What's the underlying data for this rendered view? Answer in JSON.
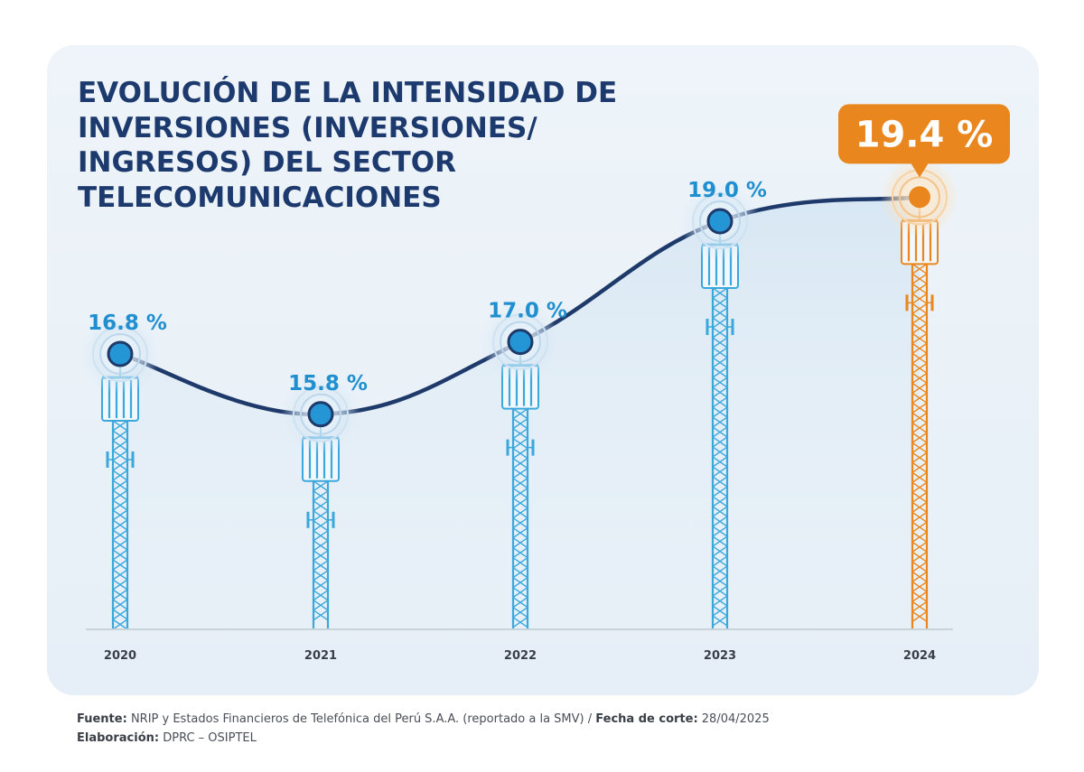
{
  "title": "EVOLUCIÓN DE LA INTENSIDAD DE INVERSIONES (INVERSIONES/ INGRESOS) DEL SECTOR TELECOMUNICACIONES",
  "footer": {
    "source_label": "Fuente:",
    "source_text": "NRIP y Estados Financieros de Telefónica del Perú S.A.A. (reportado a la SMV) /",
    "cutoff_label": "Fecha de corte:",
    "cutoff_text": "28/04/2025",
    "elab_label": "Elaboración:",
    "elab_text": "DPRC – OSIPTEL"
  },
  "colors": {
    "title": "#1d3a6e",
    "line": "#1e3a6b",
    "tower": "#3aa7dd",
    "point": "#2596d5",
    "label": "#1f8fd0",
    "highlight": "#e9861d",
    "year": "#3a3f47",
    "axis": "#c8d3dc"
  },
  "chart_data": {
    "type": "line",
    "title": "EVOLUCIÓN DE LA INTENSIDAD DE INVERSIONES (INVERSIONES/ INGRESOS) DEL SECTOR TELECOMUNICACIONES",
    "x": [
      "2020",
      "2021",
      "2022",
      "2023",
      "2024"
    ],
    "values": [
      16.8,
      15.8,
      17.0,
      19.0,
      19.4
    ],
    "value_labels": [
      "16.8 %",
      "15.8 %",
      "17.0 %",
      "19.0 %",
      "19.4 %"
    ],
    "unit": "%",
    "highlight": "2024",
    "xlabel": "",
    "ylabel": "",
    "grid": false,
    "legend": "none"
  }
}
